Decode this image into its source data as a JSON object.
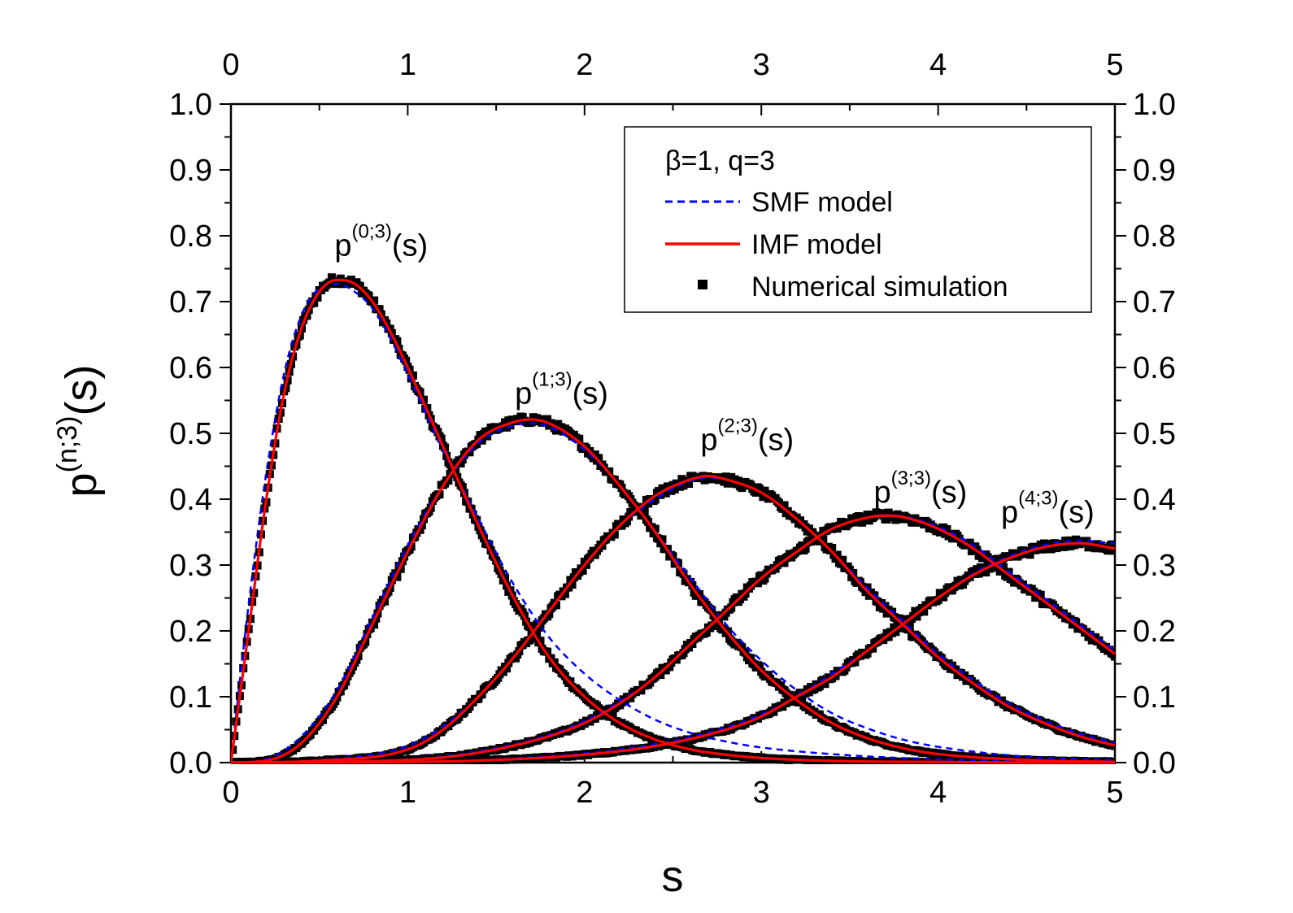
{
  "chart_data": {
    "type": "line",
    "title": "",
    "xlabel": "s",
    "ylabel": {
      "base": "p",
      "sup": "(n;3)",
      "tail": "(s)"
    },
    "xlim": [
      0,
      5
    ],
    "ylim": [
      0.0,
      1.0
    ],
    "x_ticks": [
      "0",
      "1",
      "2",
      "3",
      "4",
      "5"
    ],
    "y_ticks": [
      "0.0",
      "0.1",
      "0.2",
      "0.3",
      "0.4",
      "0.5",
      "0.6",
      "0.7",
      "0.8",
      "0.9",
      "1.0"
    ],
    "grid": false,
    "legend": {
      "position": "top-right",
      "title": "β=1, q=3",
      "entries": [
        {
          "label": "SMF model",
          "style": "dashed",
          "color": "#0000ff"
        },
        {
          "label": "IMF model",
          "style": "solid",
          "color": "#ff0000"
        },
        {
          "label": "Numerical simulation",
          "style": "markers",
          "color": "#000000"
        }
      ]
    },
    "curve_labels": [
      {
        "base": "p",
        "sup": "(0;3)",
        "tail": "(s)",
        "at": [
          0.85,
          0.77
        ]
      },
      {
        "base": "p",
        "sup": "(1;3)",
        "tail": "(s)",
        "at": [
          1.87,
          0.545
        ]
      },
      {
        "base": "p",
        "sup": "(2;3)",
        "tail": "(s)",
        "at": [
          2.92,
          0.475
        ]
      },
      {
        "base": "p",
        "sup": "(3;3)",
        "tail": "(s)",
        "at": [
          3.9,
          0.395
        ]
      },
      {
        "base": "p",
        "sup": "(4;3)",
        "tail": "(s)",
        "at": [
          4.62,
          0.365
        ]
      }
    ],
    "series": [
      {
        "name": "p(0;3)",
        "peak": [
          0.67,
          0.73
        ],
        "x": [
          0,
          0.1,
          0.2,
          0.3,
          0.4,
          0.5,
          0.6,
          0.7,
          0.8,
          0.9,
          1.0,
          1.2,
          1.4,
          1.6,
          1.8,
          2.0,
          2.2,
          2.4,
          2.6,
          2.8,
          3.0,
          3.5,
          4.0,
          4.5,
          5.0
        ],
        "imf": [
          0.0,
          0.2,
          0.4,
          0.56,
          0.66,
          0.715,
          0.733,
          0.727,
          0.7,
          0.655,
          0.6,
          0.48,
          0.36,
          0.25,
          0.16,
          0.1,
          0.06,
          0.035,
          0.02,
          0.012,
          0.007,
          0.002,
          0.001,
          0.0,
          0.0
        ],
        "smf": [
          0.0,
          0.24,
          0.44,
          0.59,
          0.68,
          0.72,
          0.727,
          0.715,
          0.69,
          0.645,
          0.59,
          0.475,
          0.37,
          0.27,
          0.19,
          0.135,
          0.095,
          0.065,
          0.045,
          0.032,
          0.023,
          0.011,
          0.005,
          0.002,
          0.001
        ]
      },
      {
        "name": "p(1;3)",
        "peak": [
          1.7,
          0.52
        ],
        "x": [
          0,
          0.2,
          0.4,
          0.6,
          0.8,
          1.0,
          1.2,
          1.4,
          1.6,
          1.7,
          1.8,
          2.0,
          2.2,
          2.4,
          2.6,
          2.8,
          3.0,
          3.2,
          3.4,
          3.6,
          3.8,
          4.0,
          4.5,
          5.0
        ],
        "imf": [
          0.0,
          0.003,
          0.03,
          0.1,
          0.21,
          0.32,
          0.42,
          0.49,
          0.517,
          0.521,
          0.515,
          0.48,
          0.42,
          0.35,
          0.27,
          0.2,
          0.14,
          0.095,
          0.06,
          0.037,
          0.022,
          0.013,
          0.004,
          0.001
        ],
        "smf": [
          0.0,
          0.005,
          0.04,
          0.11,
          0.22,
          0.33,
          0.42,
          0.485,
          0.512,
          0.515,
          0.51,
          0.475,
          0.42,
          0.35,
          0.28,
          0.21,
          0.155,
          0.11,
          0.075,
          0.052,
          0.035,
          0.024,
          0.009,
          0.004
        ]
      },
      {
        "name": "p(2;3)",
        "peak": [
          2.7,
          0.435
        ],
        "x": [
          0,
          0.5,
          1.0,
          1.2,
          1.4,
          1.6,
          1.8,
          2.0,
          2.2,
          2.4,
          2.6,
          2.7,
          2.8,
          3.0,
          3.2,
          3.4,
          3.6,
          3.8,
          4.0,
          4.2,
          4.4,
          4.6,
          4.8,
          5.0
        ],
        "imf": [
          0.0,
          0.003,
          0.02,
          0.05,
          0.1,
          0.16,
          0.23,
          0.3,
          0.36,
          0.405,
          0.43,
          0.435,
          0.43,
          0.41,
          0.37,
          0.32,
          0.26,
          0.21,
          0.16,
          0.12,
          0.085,
          0.06,
          0.04,
          0.026
        ],
        "smf": [
          0.0,
          0.004,
          0.025,
          0.055,
          0.1,
          0.16,
          0.23,
          0.3,
          0.36,
          0.4,
          0.428,
          0.433,
          0.43,
          0.41,
          0.37,
          0.32,
          0.265,
          0.215,
          0.165,
          0.125,
          0.09,
          0.064,
          0.044,
          0.03
        ]
      },
      {
        "name": "p(3;3)",
        "peak": [
          3.7,
          0.375
        ],
        "x": [
          0,
          1.0,
          1.4,
          1.8,
          2.0,
          2.2,
          2.4,
          2.6,
          2.8,
          3.0,
          3.2,
          3.4,
          3.6,
          3.7,
          3.8,
          4.0,
          4.2,
          4.4,
          4.6,
          4.8,
          5.0
        ],
        "imf": [
          0.0,
          0.004,
          0.015,
          0.04,
          0.06,
          0.09,
          0.13,
          0.18,
          0.23,
          0.28,
          0.32,
          0.355,
          0.372,
          0.375,
          0.373,
          0.355,
          0.325,
          0.285,
          0.245,
          0.205,
          0.165
        ],
        "smf": [
          0.0,
          0.005,
          0.017,
          0.042,
          0.063,
          0.093,
          0.13,
          0.18,
          0.23,
          0.28,
          0.32,
          0.355,
          0.372,
          0.376,
          0.374,
          0.358,
          0.33,
          0.29,
          0.25,
          0.21,
          0.17
        ]
      },
      {
        "name": "p(4;3)",
        "peak": [
          4.72,
          0.335
        ],
        "x": [
          0,
          1.0,
          1.5,
          2.0,
          2.4,
          2.8,
          3.0,
          3.2,
          3.4,
          3.6,
          3.8,
          4.0,
          4.2,
          4.4,
          4.6,
          4.8,
          5.0
        ],
        "imf": [
          0.0,
          0.001,
          0.004,
          0.012,
          0.025,
          0.05,
          0.07,
          0.1,
          0.13,
          0.17,
          0.21,
          0.25,
          0.285,
          0.31,
          0.327,
          0.333,
          0.325
        ],
        "smf": [
          0.0,
          0.001,
          0.005,
          0.014,
          0.028,
          0.053,
          0.073,
          0.1,
          0.135,
          0.17,
          0.21,
          0.25,
          0.287,
          0.313,
          0.33,
          0.337,
          0.333
        ]
      }
    ]
  }
}
